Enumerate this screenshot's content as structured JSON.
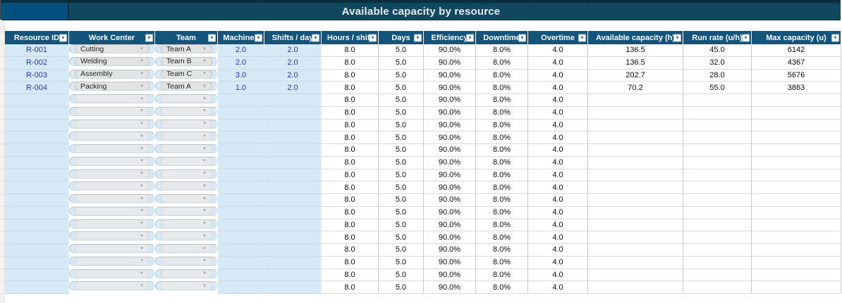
{
  "title": "Available capacity by resource",
  "icons": {
    "filter_arrow": "▼",
    "chevron_down": "▼"
  },
  "colors": {
    "title_bg": "#10485f",
    "title_left_block_bg": "#02517c",
    "header_bg": "#15547a",
    "input_row_bg": "#d6e9f7",
    "input_text_blue": "#2335c6",
    "dropdown_pill_bg": "#e3e3e4"
  },
  "columns": [
    {
      "key": "resource_id",
      "label": "Resource ID"
    },
    {
      "key": "work_center",
      "label": "Work Center"
    },
    {
      "key": "team",
      "label": "Team"
    },
    {
      "key": "machines",
      "label": "Machines"
    },
    {
      "key": "shifts_per_day",
      "label": "Shifts / day"
    },
    {
      "key": "hours_per_shift",
      "label": "Hours / shift"
    },
    {
      "key": "days",
      "label": "Days"
    },
    {
      "key": "efficiency",
      "label": "Efficiency"
    },
    {
      "key": "downtime",
      "label": "Downtime"
    },
    {
      "key": "overtime",
      "label": "Overtime"
    },
    {
      "key": "available_capacity",
      "label": "Available capacity (h)"
    },
    {
      "key": "run_rate",
      "label": "Run rate (u/h)"
    },
    {
      "key": "max_capacity",
      "label": "Max capacity (u)"
    }
  ],
  "rows": [
    {
      "resource_id": "R-001",
      "work_center": "Cutting",
      "team": "Team A",
      "machines": "2.0",
      "shifts_per_day": "2.0",
      "hours_per_shift": "8.0",
      "days": "5.0",
      "efficiency": "90.0%",
      "downtime": "8.0%",
      "overtime": "4.0",
      "available_capacity": "136.5",
      "run_rate": "45.0",
      "max_capacity": "6142"
    },
    {
      "resource_id": "R-002",
      "work_center": "Welding",
      "team": "Team B",
      "machines": "2.0",
      "shifts_per_day": "2.0",
      "hours_per_shift": "8.0",
      "days": "5.0",
      "efficiency": "90.0%",
      "downtime": "8.0%",
      "overtime": "4.0",
      "available_capacity": "136.5",
      "run_rate": "32.0",
      "max_capacity": "4367"
    },
    {
      "resource_id": "R-003",
      "work_center": "Assembly",
      "team": "Team C",
      "machines": "3.0",
      "shifts_per_day": "2.0",
      "hours_per_shift": "8.0",
      "days": "5.0",
      "efficiency": "90.0%",
      "downtime": "8.0%",
      "overtime": "4.0",
      "available_capacity": "202.7",
      "run_rate": "28.0",
      "max_capacity": "5676"
    },
    {
      "resource_id": "R-004",
      "work_center": "Packing",
      "team": "Team A",
      "machines": "1.0",
      "shifts_per_day": "2.0",
      "hours_per_shift": "8.0",
      "days": "5.0",
      "efficiency": "90.0%",
      "downtime": "8.0%",
      "overtime": "4.0",
      "available_capacity": "70.2",
      "run_rate": "55.0",
      "max_capacity": "3863"
    },
    {
      "resource_id": "",
      "work_center": "",
      "team": "",
      "machines": "",
      "shifts_per_day": "",
      "hours_per_shift": "8.0",
      "days": "5.0",
      "efficiency": "90.0%",
      "downtime": "8.0%",
      "overtime": "4.0",
      "available_capacity": "",
      "run_rate": "",
      "max_capacity": ""
    },
    {
      "resource_id": "",
      "work_center": "",
      "team": "",
      "machines": "",
      "shifts_per_day": "",
      "hours_per_shift": "8.0",
      "days": "5.0",
      "efficiency": "90.0%",
      "downtime": "8.0%",
      "overtime": "4.0",
      "available_capacity": "",
      "run_rate": "",
      "max_capacity": ""
    },
    {
      "resource_id": "",
      "work_center": "",
      "team": "",
      "machines": "",
      "shifts_per_day": "",
      "hours_per_shift": "8.0",
      "days": "5.0",
      "efficiency": "90.0%",
      "downtime": "8.0%",
      "overtime": "4.0",
      "available_capacity": "",
      "run_rate": "",
      "max_capacity": ""
    },
    {
      "resource_id": "",
      "work_center": "",
      "team": "",
      "machines": "",
      "shifts_per_day": "",
      "hours_per_shift": "8.0",
      "days": "5.0",
      "efficiency": "90.0%",
      "downtime": "8.0%",
      "overtime": "4.0",
      "available_capacity": "",
      "run_rate": "",
      "max_capacity": ""
    },
    {
      "resource_id": "",
      "work_center": "",
      "team": "",
      "machines": "",
      "shifts_per_day": "",
      "hours_per_shift": "8.0",
      "days": "5.0",
      "efficiency": "90.0%",
      "downtime": "8.0%",
      "overtime": "4.0",
      "available_capacity": "",
      "run_rate": "",
      "max_capacity": ""
    },
    {
      "resource_id": "",
      "work_center": "",
      "team": "",
      "machines": "",
      "shifts_per_day": "",
      "hours_per_shift": "8.0",
      "days": "5.0",
      "efficiency": "90.0%",
      "downtime": "8.0%",
      "overtime": "4.0",
      "available_capacity": "",
      "run_rate": "",
      "max_capacity": ""
    },
    {
      "resource_id": "",
      "work_center": "",
      "team": "",
      "machines": "",
      "shifts_per_day": "",
      "hours_per_shift": "8.0",
      "days": "5.0",
      "efficiency": "90.0%",
      "downtime": "8.0%",
      "overtime": "4.0",
      "available_capacity": "",
      "run_rate": "",
      "max_capacity": ""
    },
    {
      "resource_id": "",
      "work_center": "",
      "team": "",
      "machines": "",
      "shifts_per_day": "",
      "hours_per_shift": "8.0",
      "days": "5.0",
      "efficiency": "90.0%",
      "downtime": "8.0%",
      "overtime": "4.0",
      "available_capacity": "",
      "run_rate": "",
      "max_capacity": ""
    },
    {
      "resource_id": "",
      "work_center": "",
      "team": "",
      "machines": "",
      "shifts_per_day": "",
      "hours_per_shift": "8.0",
      "days": "5.0",
      "efficiency": "90.0%",
      "downtime": "8.0%",
      "overtime": "4.0",
      "available_capacity": "",
      "run_rate": "",
      "max_capacity": ""
    },
    {
      "resource_id": "",
      "work_center": "",
      "team": "",
      "machines": "",
      "shifts_per_day": "",
      "hours_per_shift": "8.0",
      "days": "5.0",
      "efficiency": "90.0%",
      "downtime": "8.0%",
      "overtime": "4.0",
      "available_capacity": "",
      "run_rate": "",
      "max_capacity": ""
    },
    {
      "resource_id": "",
      "work_center": "",
      "team": "",
      "machines": "",
      "shifts_per_day": "",
      "hours_per_shift": "8.0",
      "days": "5.0",
      "efficiency": "90.0%",
      "downtime": "8.0%",
      "overtime": "4.0",
      "available_capacity": "",
      "run_rate": "",
      "max_capacity": ""
    },
    {
      "resource_id": "",
      "work_center": "",
      "team": "",
      "machines": "",
      "shifts_per_day": "",
      "hours_per_shift": "8.0",
      "days": "5.0",
      "efficiency": "90.0%",
      "downtime": "8.0%",
      "overtime": "4.0",
      "available_capacity": "",
      "run_rate": "",
      "max_capacity": ""
    },
    {
      "resource_id": "",
      "work_center": "",
      "team": "",
      "machines": "",
      "shifts_per_day": "",
      "hours_per_shift": "8.0",
      "days": "5.0",
      "efficiency": "90.0%",
      "downtime": "8.0%",
      "overtime": "4.0",
      "available_capacity": "",
      "run_rate": "",
      "max_capacity": ""
    },
    {
      "resource_id": "",
      "work_center": "",
      "team": "",
      "machines": "",
      "shifts_per_day": "",
      "hours_per_shift": "8.0",
      "days": "5.0",
      "efficiency": "90.0%",
      "downtime": "8.0%",
      "overtime": "4.0",
      "available_capacity": "",
      "run_rate": "",
      "max_capacity": ""
    },
    {
      "resource_id": "",
      "work_center": "",
      "team": "",
      "machines": "",
      "shifts_per_day": "",
      "hours_per_shift": "8.0",
      "days": "5.0",
      "efficiency": "90.0%",
      "downtime": "8.0%",
      "overtime": "4.0",
      "available_capacity": "",
      "run_rate": "",
      "max_capacity": ""
    },
    {
      "resource_id": "",
      "work_center": "",
      "team": "",
      "machines": "",
      "shifts_per_day": "",
      "hours_per_shift": "8.0",
      "days": "5.0",
      "efficiency": "90.0%",
      "downtime": "8.0%",
      "overtime": "4.0",
      "available_capacity": "",
      "run_rate": "",
      "max_capacity": ""
    }
  ]
}
